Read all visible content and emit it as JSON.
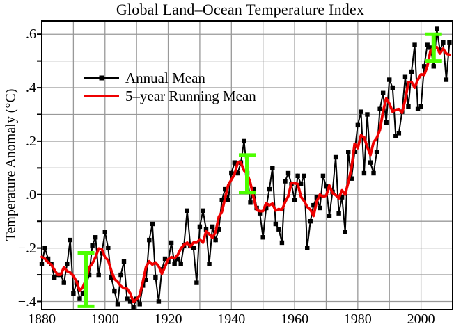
{
  "title": "Global Land–Ocean Temperature Index",
  "chart_data": {
    "type": "line",
    "title": "Global Land–Ocean Temperature Index",
    "xlabel": "",
    "ylabel": "Temperature Anomaly (°C)",
    "xlim": [
      1880,
      2010
    ],
    "ylim": [
      -0.43,
      0.65
    ],
    "grid": true,
    "grid_color": "#999999",
    "x_gridline_step_years": 10,
    "y_gridline_step": 0.1,
    "x_ticks": [
      {
        "value": 1880,
        "label": "1880"
      },
      {
        "value": 1900,
        "label": "1900"
      },
      {
        "value": 1920,
        "label": "1920"
      },
      {
        "value": 1940,
        "label": "1940"
      },
      {
        "value": 1960,
        "label": "1960"
      },
      {
        "value": 1980,
        "label": "1980"
      },
      {
        "value": 2000,
        "label": "2000"
      }
    ],
    "y_ticks": [
      {
        "value": 0.6,
        "label": ".6"
      },
      {
        "value": 0.4,
        "label": ".4"
      },
      {
        "value": 0.2,
        "label": ".2"
      },
      {
        "value": 0.0,
        "label": ".0"
      },
      {
        "value": -0.2,
        "label": "−.2"
      },
      {
        "value": -0.4,
        "label": "−.4"
      }
    ],
    "legend_position": "upper-left-inside",
    "year_start": 1880,
    "year_end": 2009,
    "series": [
      {
        "name": "Annual Mean",
        "type": "line+marker",
        "marker": "square",
        "color": "#000000",
        "values": [
          -0.26,
          -0.2,
          -0.24,
          -0.26,
          -0.31,
          -0.3,
          -0.3,
          -0.33,
          -0.26,
          -0.17,
          -0.37,
          -0.33,
          -0.39,
          -0.37,
          -0.34,
          -0.3,
          -0.19,
          -0.16,
          -0.3,
          -0.22,
          -0.14,
          -0.2,
          -0.31,
          -0.36,
          -0.41,
          -0.3,
          -0.25,
          -0.39,
          -0.4,
          -0.42,
          -0.39,
          -0.41,
          -0.34,
          -0.32,
          -0.17,
          -0.11,
          -0.31,
          -0.4,
          -0.28,
          -0.24,
          -0.25,
          -0.18,
          -0.26,
          -0.24,
          -0.26,
          -0.19,
          -0.06,
          -0.19,
          -0.2,
          -0.33,
          -0.12,
          -0.06,
          -0.13,
          -0.26,
          -0.12,
          -0.17,
          -0.13,
          -0.02,
          0.02,
          -0.02,
          0.08,
          0.12,
          0.08,
          0.12,
          0.2,
          0.08,
          -0.03,
          0.02,
          -0.05,
          -0.07,
          -0.16,
          -0.05,
          0.02,
          0.1,
          -0.11,
          -0.13,
          -0.18,
          0.05,
          0.08,
          0.04,
          -0.02,
          0.07,
          0.04,
          0.07,
          -0.2,
          -0.1,
          -0.04,
          -0.01,
          -0.05,
          0.07,
          0.03,
          -0.08,
          0.01,
          0.14,
          -0.07,
          -0.01,
          -0.14,
          0.16,
          0.06,
          0.16,
          0.26,
          0.31,
          0.08,
          0.3,
          0.12,
          0.08,
          0.16,
          0.32,
          0.38,
          0.27,
          0.43,
          0.4,
          0.22,
          0.23,
          0.31,
          0.44,
          0.33,
          0.46,
          0.56,
          0.32,
          0.33,
          0.48,
          0.56,
          0.55,
          0.48,
          0.62,
          0.54,
          0.57,
          0.43,
          0.57
        ]
      },
      {
        "name": "5–year Running Mean",
        "type": "line",
        "color": "#ee0000",
        "derived_from": "Annual Mean",
        "derivation": "centered 5-year running mean (shorter window at series ends)"
      }
    ],
    "uncertainty_bars": {
      "color": "#4dff00",
      "note": "green bars centered on 5-year running mean",
      "points": [
        {
          "year": 1894,
          "half_width": 0.1
        },
        {
          "year": 1945,
          "half_width": 0.07
        },
        {
          "year": 2004,
          "half_width": 0.05
        }
      ]
    }
  }
}
